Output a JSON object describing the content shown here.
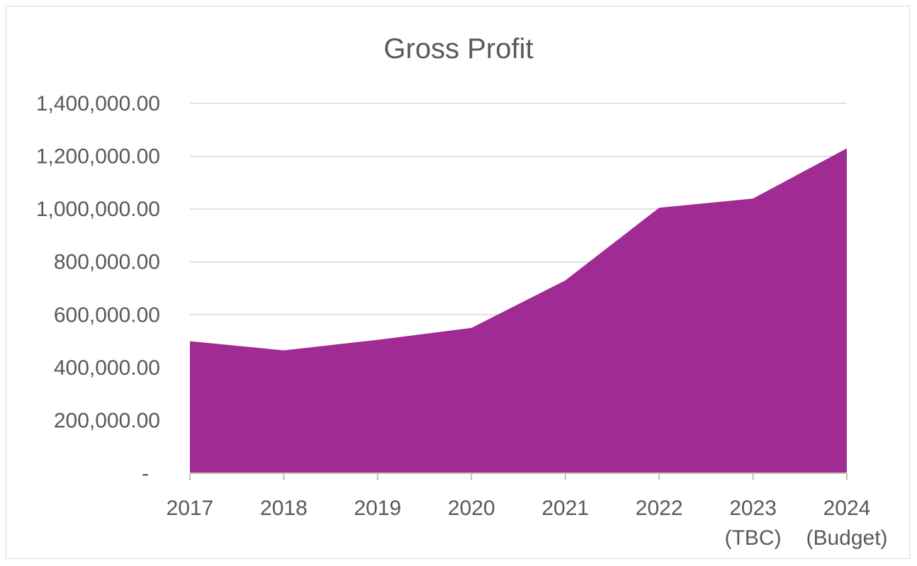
{
  "chart_data": {
    "type": "area",
    "title": "Gross Profit",
    "xlabel": "",
    "ylabel": "",
    "categories": [
      [
        "2017"
      ],
      [
        "2018"
      ],
      [
        "2019"
      ],
      [
        "2020"
      ],
      [
        "2021"
      ],
      [
        "2022"
      ],
      [
        "2023",
        "(TBC)"
      ],
      [
        "2024",
        "(Budget)"
      ]
    ],
    "series": [
      {
        "values": [
          500000,
          465000,
          505000,
          550000,
          730000,
          1005000,
          1040000,
          1230000
        ],
        "color": "#A02B93"
      }
    ],
    "ylim": [
      0,
      1400000
    ],
    "y_ticks": [
      {
        "value": 0,
        "label": "-"
      },
      {
        "value": 200000,
        "label": "200,000.00"
      },
      {
        "value": 400000,
        "label": "400,000.00"
      },
      {
        "value": 600000,
        "label": "600,000.00"
      },
      {
        "value": 800000,
        "label": "800,000.00"
      },
      {
        "value": 1000000,
        "label": "1,000,000.00"
      },
      {
        "value": 1200000,
        "label": "1,200,000.00"
      },
      {
        "value": 1400000,
        "label": "1,400,000.00"
      }
    ],
    "grid": true,
    "gridline_color": "#d9d9d9",
    "axis_color": "#bfbfbf",
    "legend": "none"
  }
}
